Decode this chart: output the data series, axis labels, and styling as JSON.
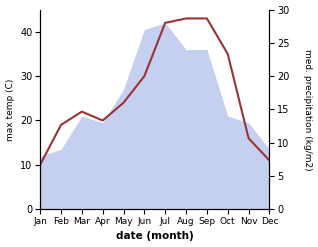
{
  "months": [
    "Jan",
    "Feb",
    "Mar",
    "Apr",
    "May",
    "Jun",
    "Jul",
    "Aug",
    "Sep",
    "Oct",
    "Nov",
    "Dec"
  ],
  "temperature": [
    10,
    19,
    22,
    20,
    24,
    30,
    42,
    43,
    43,
    35,
    16,
    11
  ],
  "precipitation": [
    8,
    9,
    14,
    13,
    18,
    27,
    28,
    24,
    24,
    14,
    13,
    9
  ],
  "temp_color": "#993333",
  "precip_fill_color": "#c5cff0",
  "temp_ylim": [
    0,
    45
  ],
  "precip_ylim": [
    0,
    30
  ],
  "temp_yticks": [
    0,
    10,
    20,
    30,
    40
  ],
  "precip_yticks": [
    0,
    5,
    10,
    15,
    20,
    25,
    30
  ],
  "xlabel": "date (month)",
  "ylabel_left": "max temp (C)",
  "ylabel_right": "med. precipitation (kg/m2)",
  "fig_width": 3.18,
  "fig_height": 2.47,
  "dpi": 100
}
